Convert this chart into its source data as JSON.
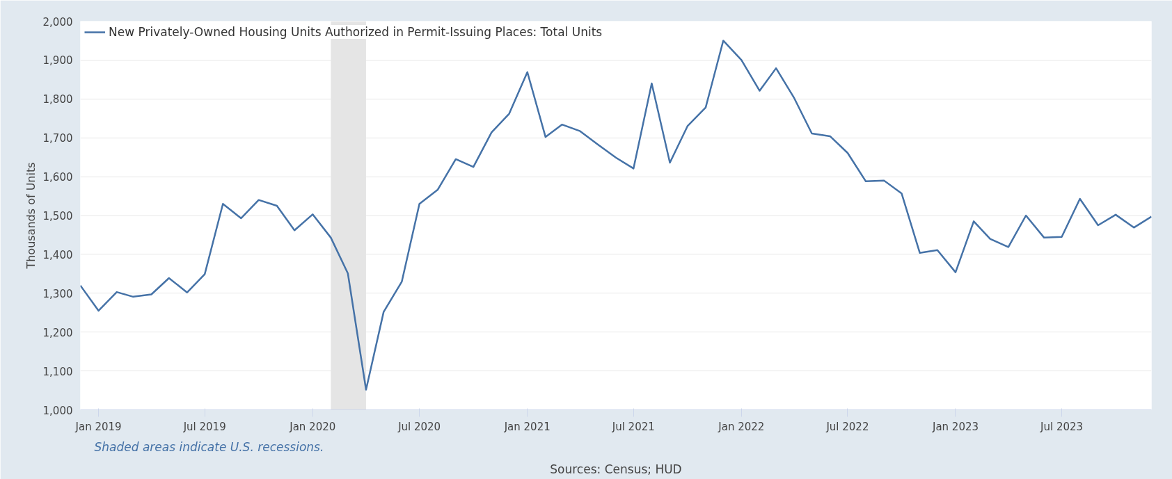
{
  "chart_data": {
    "type": "line",
    "ylabel": "Thousands of Units",
    "x": [
      "2018-12",
      "2019-01",
      "2019-02",
      "2019-03",
      "2019-04",
      "2019-05",
      "2019-06",
      "2019-07",
      "2019-08",
      "2019-09",
      "2019-10",
      "2019-11",
      "2019-12",
      "2020-01",
      "2020-02",
      "2020-03",
      "2020-04",
      "2020-05",
      "2020-06",
      "2020-07",
      "2020-08",
      "2020-09",
      "2020-10",
      "2020-11",
      "2020-12",
      "2021-01",
      "2021-02",
      "2021-03",
      "2021-04",
      "2021-05",
      "2021-06",
      "2021-07",
      "2021-08",
      "2021-09",
      "2021-10",
      "2021-11",
      "2021-12",
      "2022-01",
      "2022-02",
      "2022-03",
      "2022-04",
      "2022-05",
      "2022-06",
      "2022-07",
      "2022-08",
      "2022-09",
      "2022-10",
      "2022-11",
      "2022-12",
      "2023-01",
      "2023-02",
      "2023-03",
      "2023-04",
      "2023-05",
      "2023-06",
      "2023-07",
      "2023-08",
      "2023-09",
      "2023-10",
      "2023-11",
      "2023-12"
    ],
    "series": [
      {
        "name": "New Privately-Owned Housing Units Authorized in Permit-Issuing Places: Total Units",
        "color": "#4572a7",
        "values": [
          1320,
          1255,
          1303,
          1291,
          1297,
          1339,
          1302,
          1349,
          1530,
          1493,
          1540,
          1525,
          1462,
          1503,
          1443,
          1351,
          1052,
          1252,
          1330,
          1530,
          1566,
          1645,
          1625,
          1714,
          1762,
          1869,
          1702,
          1734,
          1717,
          1683,
          1649,
          1621,
          1840,
          1636,
          1730,
          1778,
          1950,
          1900,
          1821,
          1879,
          1802,
          1711,
          1704,
          1661,
          1588,
          1590,
          1557,
          1404,
          1411,
          1354,
          1485,
          1440,
          1419,
          1500,
          1443,
          1445,
          1543,
          1475,
          1502,
          1469,
          1497
        ]
      }
    ],
    "xlim": [
      "2018-12",
      "2023-12"
    ],
    "xticks": [
      {
        "value": "2019-01",
        "label": "Jan 2019"
      },
      {
        "value": "2019-07",
        "label": "Jul 2019"
      },
      {
        "value": "2020-01",
        "label": "Jan 2020"
      },
      {
        "value": "2020-07",
        "label": "Jul 2020"
      },
      {
        "value": "2021-01",
        "label": "Jan 2021"
      },
      {
        "value": "2021-07",
        "label": "Jul 2021"
      },
      {
        "value": "2022-01",
        "label": "Jan 2022"
      },
      {
        "value": "2022-07",
        "label": "Jul 2022"
      },
      {
        "value": "2023-01",
        "label": "Jan 2023"
      },
      {
        "value": "2023-07",
        "label": "Jul 2023"
      }
    ],
    "ylim": [
      1000,
      2000
    ],
    "yticks": [
      {
        "value": 1000,
        "label": "1,000"
      },
      {
        "value": 1100,
        "label": "1,100"
      },
      {
        "value": 1200,
        "label": "1,200"
      },
      {
        "value": 1300,
        "label": "1,300"
      },
      {
        "value": 1400,
        "label": "1,400"
      },
      {
        "value": 1500,
        "label": "1,500"
      },
      {
        "value": 1600,
        "label": "1,600"
      },
      {
        "value": 1700,
        "label": "1,700"
      },
      {
        "value": 1800,
        "label": "1,800"
      },
      {
        "value": 1900,
        "label": "1,900"
      },
      {
        "value": 2000,
        "label": "2,000"
      }
    ],
    "bands": [
      {
        "axis": "x",
        "from": "2020-02",
        "to": "2020-04",
        "color": "#e5e5e5"
      }
    ],
    "grid": "y",
    "legend": "top left",
    "annotations": [
      "Shaded areas indicate U.S. recessions.",
      "Sources: Census; HUD"
    ]
  }
}
